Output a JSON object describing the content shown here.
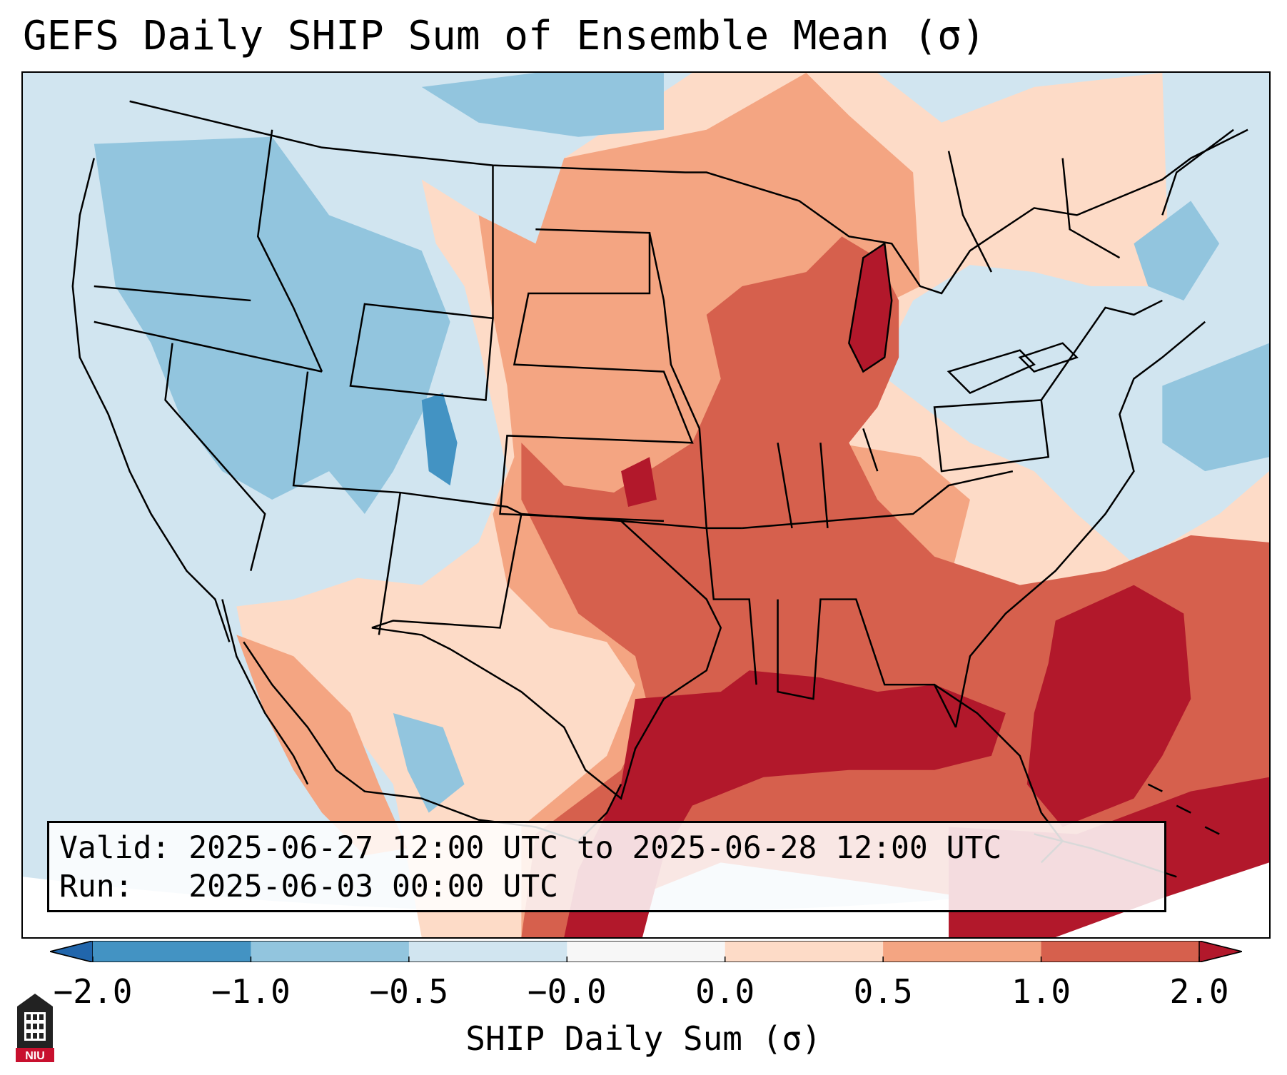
{
  "title": "GEFS Daily SHIP Sum of Ensemble Mean (σ)",
  "info": {
    "valid_line": "Valid: 2025-06-27 12:00 UTC to 2025-06-28 12:00 UTC",
    "run_line": "Run:   2025-06-03 00:00 UTC"
  },
  "colorbar": {
    "label": "SHIP Daily Sum (σ)",
    "ticks": [
      "−2.0",
      "−1.0",
      "−0.5",
      "−0.0",
      "0.0",
      "0.5",
      "1.0",
      "2.0"
    ],
    "extend": "both",
    "colors": [
      "#2166ac",
      "#4393c3",
      "#92c5de",
      "#d1e5f0",
      "#f7f7f7",
      "#fddbc7",
      "#f4a582",
      "#d6604d",
      "#b2182b"
    ]
  },
  "map": {
    "projection": "lambert-conformal",
    "region": "CONUS",
    "ocean_color": "#d1e5f0",
    "land_color": "#ffffff"
  },
  "logo": {
    "text": "NIU",
    "color": "#c8102e"
  }
}
